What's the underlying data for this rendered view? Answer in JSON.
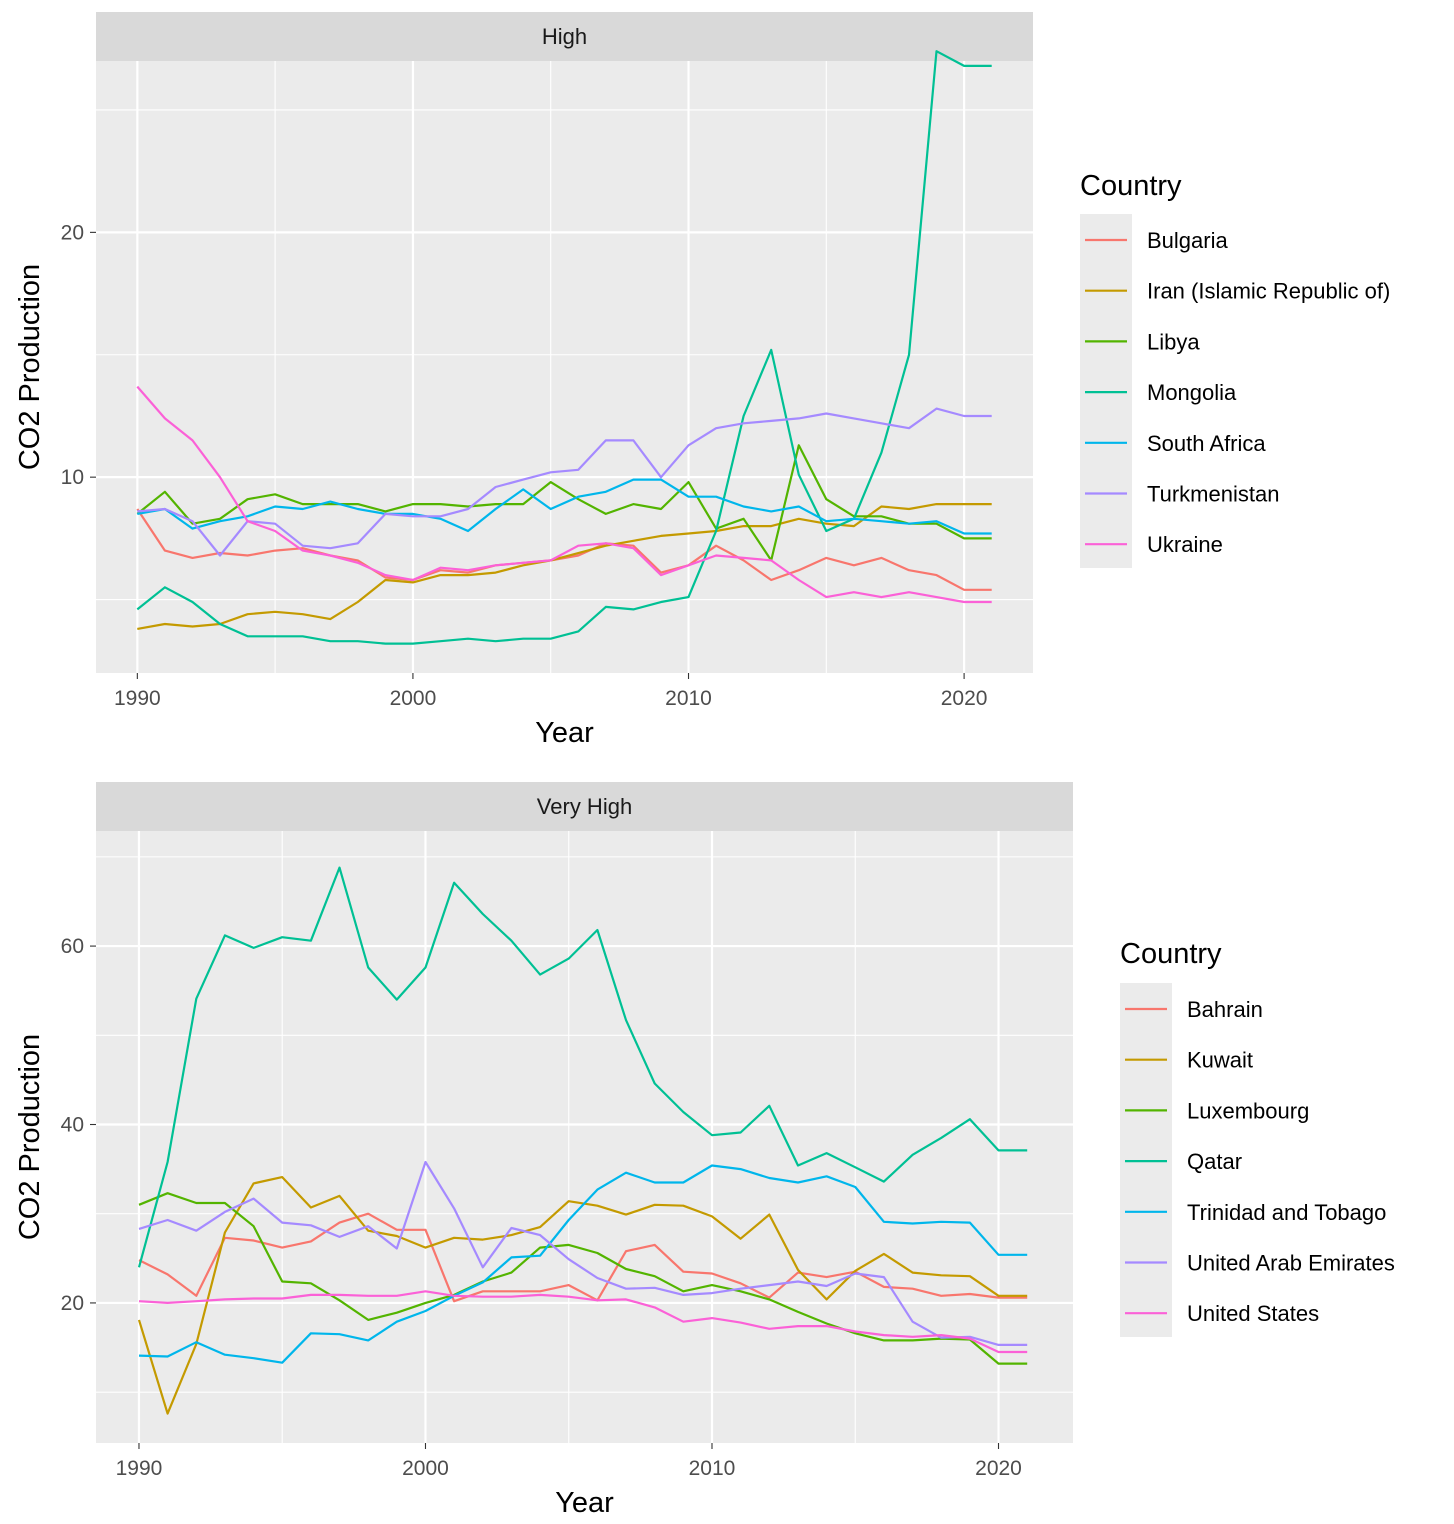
{
  "chart_data": [
    {
      "type": "line",
      "facet": "High",
      "xlabel": "Year",
      "ylabel": "CO2 Production",
      "legend_title": "Country",
      "legend_position": "right",
      "x_ticks": [
        1990,
        2000,
        2010,
        2020
      ],
      "y_ticks": [
        10,
        20
      ],
      "xlim": [
        1988.5,
        2022.5
      ],
      "ylim": [
        2.0,
        27.0
      ],
      "grid": true,
      "x": [
        1990,
        1991,
        1992,
        1993,
        1994,
        1995,
        1996,
        1997,
        1998,
        1999,
        2000,
        2001,
        2002,
        2003,
        2004,
        2005,
        2006,
        2007,
        2008,
        2009,
        2010,
        2011,
        2012,
        2013,
        2014,
        2015,
        2016,
        2017,
        2018,
        2019,
        2020,
        2021
      ],
      "series": [
        {
          "name": "Bulgaria",
          "color": "#F8766D",
          "values": [
            8.7,
            7.0,
            6.7,
            6.9,
            6.8,
            7.0,
            7.1,
            6.8,
            6.6,
            5.9,
            5.8,
            6.2,
            6.1,
            6.4,
            6.5,
            6.6,
            6.8,
            7.3,
            7.2,
            6.1,
            6.4,
            7.2,
            6.6,
            5.8,
            6.2,
            6.7,
            6.4,
            6.7,
            6.2,
            6.0,
            5.4,
            5.4
          ]
        },
        {
          "name": "Iran (Islamic Republic of)",
          "color": "#C49A00",
          "values": [
            3.8,
            4.0,
            3.9,
            4.0,
            4.4,
            4.5,
            4.4,
            4.2,
            4.9,
            5.8,
            5.7,
            6.0,
            6.0,
            6.1,
            6.4,
            6.6,
            6.9,
            7.2,
            7.4,
            7.6,
            7.7,
            7.8,
            8.0,
            8.0,
            8.3,
            8.1,
            8.0,
            8.8,
            8.7,
            8.9,
            8.9,
            8.9
          ]
        },
        {
          "name": "Libya",
          "color": "#53B400",
          "values": [
            8.5,
            9.4,
            8.1,
            8.3,
            9.1,
            9.3,
            8.9,
            8.9,
            8.9,
            8.6,
            8.9,
            8.9,
            8.8,
            8.9,
            8.9,
            9.8,
            9.1,
            8.5,
            8.9,
            8.7,
            9.8,
            7.9,
            8.3,
            6.6,
            11.3,
            9.1,
            8.4,
            8.4,
            8.1,
            8.1,
            7.5,
            7.5
          ]
        },
        {
          "name": "Mongolia",
          "color": "#00C094",
          "values": [
            4.6,
            5.5,
            4.9,
            4.0,
            3.5,
            3.5,
            3.5,
            3.3,
            3.3,
            3.2,
            3.2,
            3.3,
            3.4,
            3.3,
            3.4,
            3.4,
            3.7,
            4.7,
            4.6,
            4.9,
            5.1,
            7.8,
            12.5,
            15.2,
            10.1,
            7.8,
            8.3,
            11.0,
            15.0,
            27.4,
            26.8,
            26.8
          ]
        },
        {
          "name": "South Africa",
          "color": "#00B6EB",
          "values": [
            8.5,
            8.7,
            7.9,
            8.2,
            8.4,
            8.8,
            8.7,
            9.0,
            8.7,
            8.5,
            8.5,
            8.3,
            7.8,
            8.7,
            9.5,
            8.7,
            9.2,
            9.4,
            9.9,
            9.9,
            9.2,
            9.2,
            8.8,
            8.6,
            8.8,
            8.2,
            8.3,
            8.2,
            8.1,
            8.2,
            7.7,
            7.7
          ]
        },
        {
          "name": "Turkmenistan",
          "color": "#A58AFF",
          "values": [
            8.6,
            8.7,
            8.2,
            6.8,
            8.2,
            8.1,
            7.2,
            7.1,
            7.3,
            8.5,
            8.4,
            8.4,
            8.7,
            9.6,
            9.9,
            10.2,
            10.3,
            11.5,
            11.5,
            10.0,
            11.3,
            12.0,
            12.2,
            12.3,
            12.4,
            12.6,
            12.4,
            12.2,
            12.0,
            12.8,
            12.5,
            12.5
          ]
        },
        {
          "name": "Ukraine",
          "color": "#FB61D7",
          "values": [
            13.7,
            12.4,
            11.5,
            10.0,
            8.2,
            7.8,
            7.0,
            6.8,
            6.5,
            6.0,
            5.8,
            6.3,
            6.2,
            6.4,
            6.5,
            6.6,
            7.2,
            7.3,
            7.1,
            6.0,
            6.4,
            6.8,
            6.7,
            6.6,
            5.8,
            5.1,
            5.3,
            5.1,
            5.3,
            5.1,
            4.9,
            4.9
          ]
        }
      ]
    },
    {
      "type": "line",
      "facet": "Very High",
      "xlabel": "Year",
      "ylabel": "CO2 Production",
      "legend_title": "Country",
      "legend_position": "right",
      "x_ticks": [
        1990,
        2000,
        2010,
        2020
      ],
      "y_ticks": [
        20,
        40,
        60
      ],
      "xlim": [
        1988.5,
        2022.6
      ],
      "ylim": [
        4.3,
        72.9
      ],
      "grid": true,
      "x": [
        1990,
        1991,
        1992,
        1993,
        1994,
        1995,
        1996,
        1997,
        1998,
        1999,
        2000,
        2001,
        2002,
        2003,
        2004,
        2005,
        2006,
        2007,
        2008,
        2009,
        2010,
        2011,
        2012,
        2013,
        2014,
        2015,
        2016,
        2017,
        2018,
        2019,
        2020,
        2021
      ],
      "series": [
        {
          "name": "Bahrain",
          "color": "#F8766D",
          "values": [
            24.8,
            23.2,
            20.8,
            27.3,
            27.0,
            26.2,
            26.9,
            29.0,
            30.0,
            28.2,
            28.2,
            20.2,
            21.3,
            21.3,
            21.3,
            22.0,
            20.3,
            25.8,
            26.5,
            23.5,
            23.3,
            22.2,
            20.6,
            23.4,
            22.9,
            23.5,
            21.8,
            21.6,
            20.8,
            21.0,
            20.6,
            20.6
          ]
        },
        {
          "name": "Kuwait",
          "color": "#C49A00",
          "values": [
            18.1,
            7.6,
            15.4,
            27.9,
            33.4,
            34.1,
            30.7,
            32.0,
            28.1,
            27.5,
            26.2,
            27.3,
            27.1,
            27.6,
            28.5,
            31.4,
            30.9,
            29.9,
            31.0,
            30.9,
            29.7,
            27.2,
            29.9,
            23.7,
            20.4,
            23.6,
            25.5,
            23.4,
            23.1,
            23.0,
            20.8,
            20.8
          ]
        },
        {
          "name": "Luxembourg",
          "color": "#53B400",
          "values": [
            31.0,
            32.3,
            31.2,
            31.2,
            28.6,
            22.4,
            22.2,
            20.3,
            18.1,
            18.9,
            20.0,
            20.9,
            22.4,
            23.4,
            26.2,
            26.5,
            25.6,
            23.8,
            23.0,
            21.3,
            22.0,
            21.3,
            20.4,
            19.0,
            17.7,
            16.6,
            15.8,
            15.8,
            16.0,
            15.9,
            13.2,
            13.2
          ]
        },
        {
          "name": "Qatar",
          "color": "#00C094",
          "values": [
            24.0,
            35.8,
            54.1,
            61.2,
            59.8,
            61.0,
            60.6,
            68.8,
            57.6,
            54.0,
            57.6,
            67.1,
            63.6,
            60.6,
            56.8,
            58.6,
            61.8,
            51.7,
            44.6,
            41.4,
            38.8,
            39.1,
            42.1,
            35.4,
            36.8,
            35.2,
            33.6,
            36.6,
            38.5,
            40.6,
            37.1,
            37.1
          ]
        },
        {
          "name": "Trinidad and Tobago",
          "color": "#00B6EB",
          "values": [
            14.1,
            14.0,
            15.6,
            14.2,
            13.8,
            13.3,
            16.6,
            16.5,
            15.8,
            17.9,
            19.1,
            20.8,
            22.3,
            25.1,
            25.3,
            29.3,
            32.7,
            34.6,
            33.5,
            33.5,
            35.4,
            35.0,
            34.0,
            33.5,
            34.2,
            33.0,
            29.1,
            28.9,
            29.1,
            29.0,
            25.4,
            25.4
          ]
        },
        {
          "name": "United Arab Emirates",
          "color": "#A58AFF",
          "values": [
            28.3,
            29.3,
            28.1,
            30.2,
            31.7,
            29.0,
            28.7,
            27.4,
            28.6,
            26.1,
            35.8,
            30.6,
            24.0,
            28.4,
            27.6,
            24.9,
            22.8,
            21.6,
            21.7,
            20.9,
            21.1,
            21.6,
            22.0,
            22.4,
            21.9,
            23.3,
            22.9,
            17.9,
            16.1,
            16.2,
            15.3,
            15.3
          ]
        },
        {
          "name": "United States",
          "color": "#FB61D7",
          "values": [
            20.2,
            20.0,
            20.2,
            20.4,
            20.5,
            20.5,
            20.9,
            20.9,
            20.8,
            20.8,
            21.3,
            20.8,
            20.7,
            20.7,
            20.9,
            20.7,
            20.3,
            20.4,
            19.5,
            17.9,
            18.3,
            17.8,
            17.1,
            17.4,
            17.4,
            16.8,
            16.4,
            16.2,
            16.4,
            16.0,
            14.5,
            14.5
          ]
        }
      ]
    }
  ]
}
